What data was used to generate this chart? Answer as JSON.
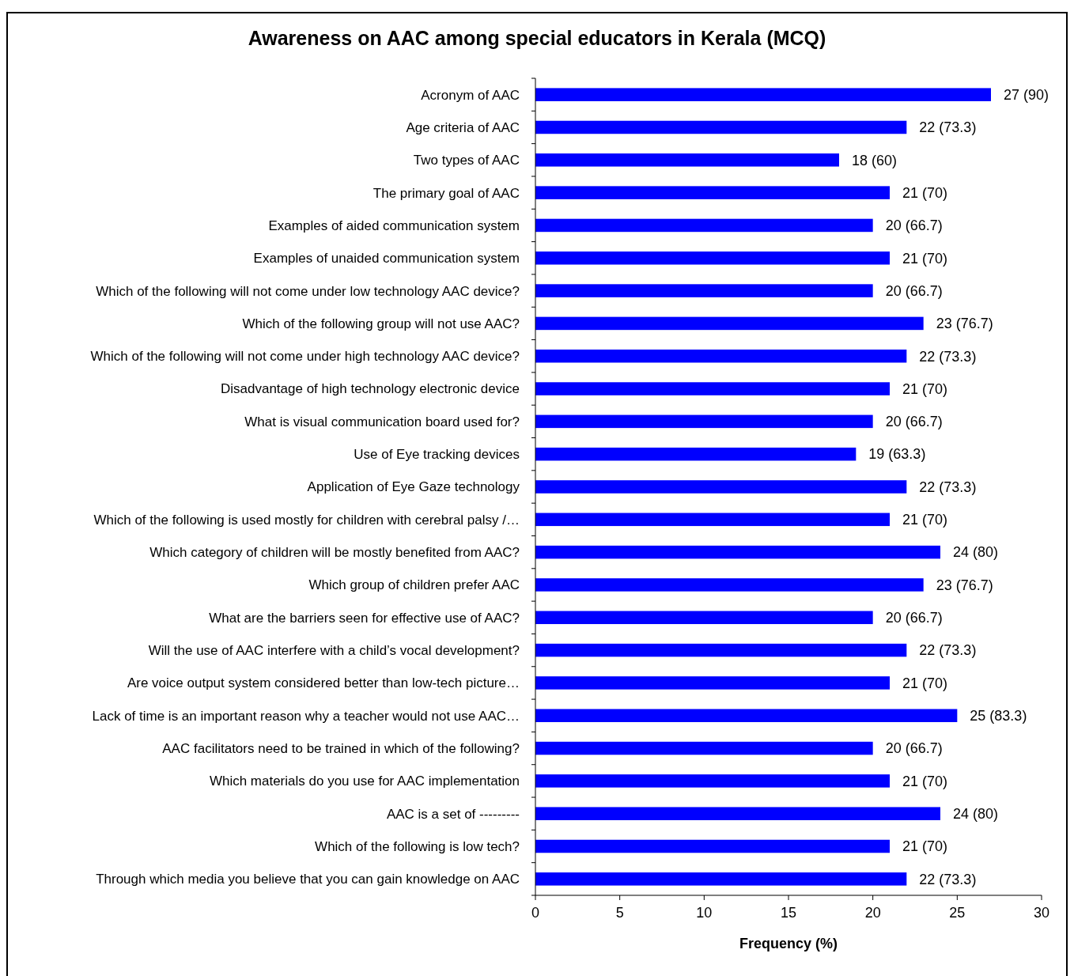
{
  "chart_data": {
    "type": "bar",
    "orientation": "horizontal",
    "title": "Awareness on AAC among special educators in Kerala (MCQ)",
    "xlabel": "Frequency (%)",
    "categories": [
      "Acronym of AAC",
      "Age criteria of AAC",
      "Two types of AAC",
      "The primary goal of AAC",
      "Examples of aided communication system",
      "Examples of unaided communication system",
      "Which of the following will not come under low technology AAC device?",
      "Which of the following group will not use AAC?",
      "Which of the following will not come under high technology AAC device?",
      "Disadvantage of high technology electronic device",
      "What is visual communication board used for?",
      "Use of Eye tracking devices",
      "Application of Eye Gaze technology",
      "Which of the following is used mostly for children with cerebral palsy /…",
      "Which category of children will be mostly benefited from AAC?",
      "Which group of children prefer AAC",
      "What are the barriers seen for effective use of AAC?",
      "Will the use of AAC interfere with a child’s vocal development?",
      "Are voice output system considered better than low-tech picture…",
      "Lack of time is an important reason why a teacher would not use AAC…",
      "AAC facilitators need to be trained in which of the following?",
      "Which materials do you use for AAC implementation",
      "AAC is a set of ---------",
      "Which of the following is low tech?",
      "Through which media you believe that you can gain knowledge on AAC"
    ],
    "values": [
      27,
      22,
      18,
      21,
      20,
      21,
      20,
      23,
      22,
      21,
      20,
      19,
      22,
      21,
      24,
      23,
      20,
      22,
      21,
      25,
      20,
      21,
      24,
      21,
      22
    ],
    "value_labels": [
      "27 (90)",
      "22 (73.3)",
      "18 (60)",
      "21 (70)",
      "20 (66.7)",
      "21 (70)",
      "20 (66.7)",
      "23 (76.7)",
      "22 (73.3)",
      "21 (70)",
      "20 (66.7)",
      "19 (63.3)",
      "22 (73.3)",
      "21 (70)",
      "24 (80)",
      "23 (76.7)",
      "20 (66.7)",
      "22 (73.3)",
      "21 (70)",
      "25 (83.3)",
      "20 (66.7)",
      "21 (70)",
      "24 (80)",
      "21 (70)",
      "22 (73.3)"
    ],
    "color": "#0000ff",
    "xlim": [
      0,
      30
    ],
    "xticks": [
      0,
      5,
      10,
      15,
      20,
      25,
      30
    ],
    "grid": false
  }
}
